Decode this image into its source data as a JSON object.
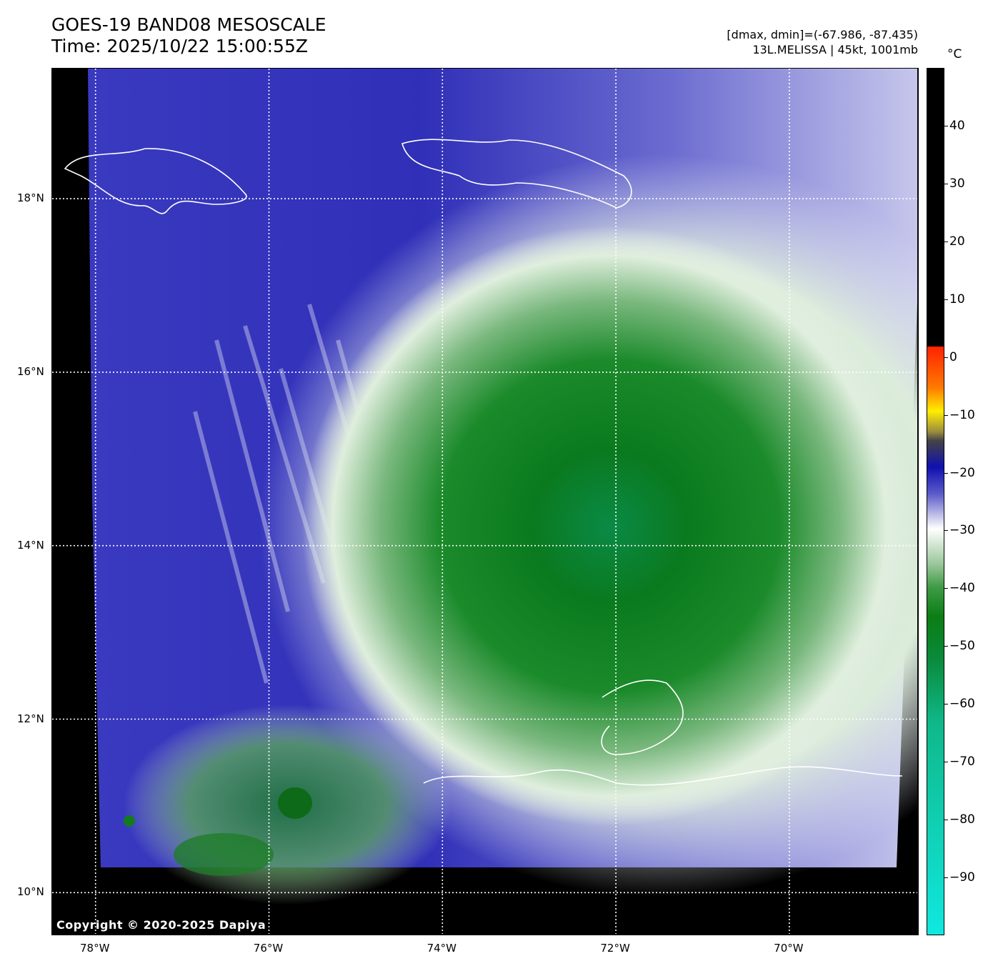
{
  "header": {
    "title_line1": "GOES-19 BAND08 MESOSCALE",
    "title_line2": "Time: 2025/10/22 15:00:55Z",
    "info_line1": "[dmax, dmin]=(-67.986, -87.435)",
    "info_line2": "13L.MELISSA | 45kt, 1001mb"
  },
  "map": {
    "copyright": "Copyright © 2020-2025 Dapiya",
    "lon_range": [
      -78.5,
      -68.5
    ],
    "lat_range": [
      9.5,
      19.5
    ],
    "x_ticks": [
      {
        "lon": -78,
        "label": "78°W"
      },
      {
        "lon": -76,
        "label": "76°W"
      },
      {
        "lon": -74,
        "label": "74°W"
      },
      {
        "lon": -72,
        "label": "72°W"
      },
      {
        "lon": -70,
        "label": "70°W"
      }
    ],
    "y_ticks": [
      {
        "lat": 18,
        "label": "18°N"
      },
      {
        "lat": 16,
        "label": "16°N"
      },
      {
        "lat": 14,
        "label": "14°N"
      },
      {
        "lat": 12,
        "label": "12°N"
      },
      {
        "lat": 10,
        "label": "10°N"
      }
    ],
    "colors": {
      "background": "#000000",
      "cloud_cold": "#0b7d1a",
      "cloud_warm": "#3c3cc8",
      "coastline": "#ffffff"
    }
  },
  "colorbar": {
    "unit": "°C",
    "range": [
      -100,
      50
    ],
    "ticks": [
      {
        "value": 40,
        "label": "40"
      },
      {
        "value": 30,
        "label": "30"
      },
      {
        "value": 20,
        "label": "20"
      },
      {
        "value": 10,
        "label": "10"
      },
      {
        "value": 0,
        "label": "0"
      },
      {
        "value": -10,
        "label": "−10"
      },
      {
        "value": -20,
        "label": "−20"
      },
      {
        "value": -30,
        "label": "−30"
      },
      {
        "value": -40,
        "label": "−40"
      },
      {
        "value": -50,
        "label": "−50"
      },
      {
        "value": -60,
        "label": "−60"
      },
      {
        "value": -70,
        "label": "−70"
      },
      {
        "value": -80,
        "label": "−80"
      },
      {
        "value": -90,
        "label": "−90"
      }
    ]
  }
}
